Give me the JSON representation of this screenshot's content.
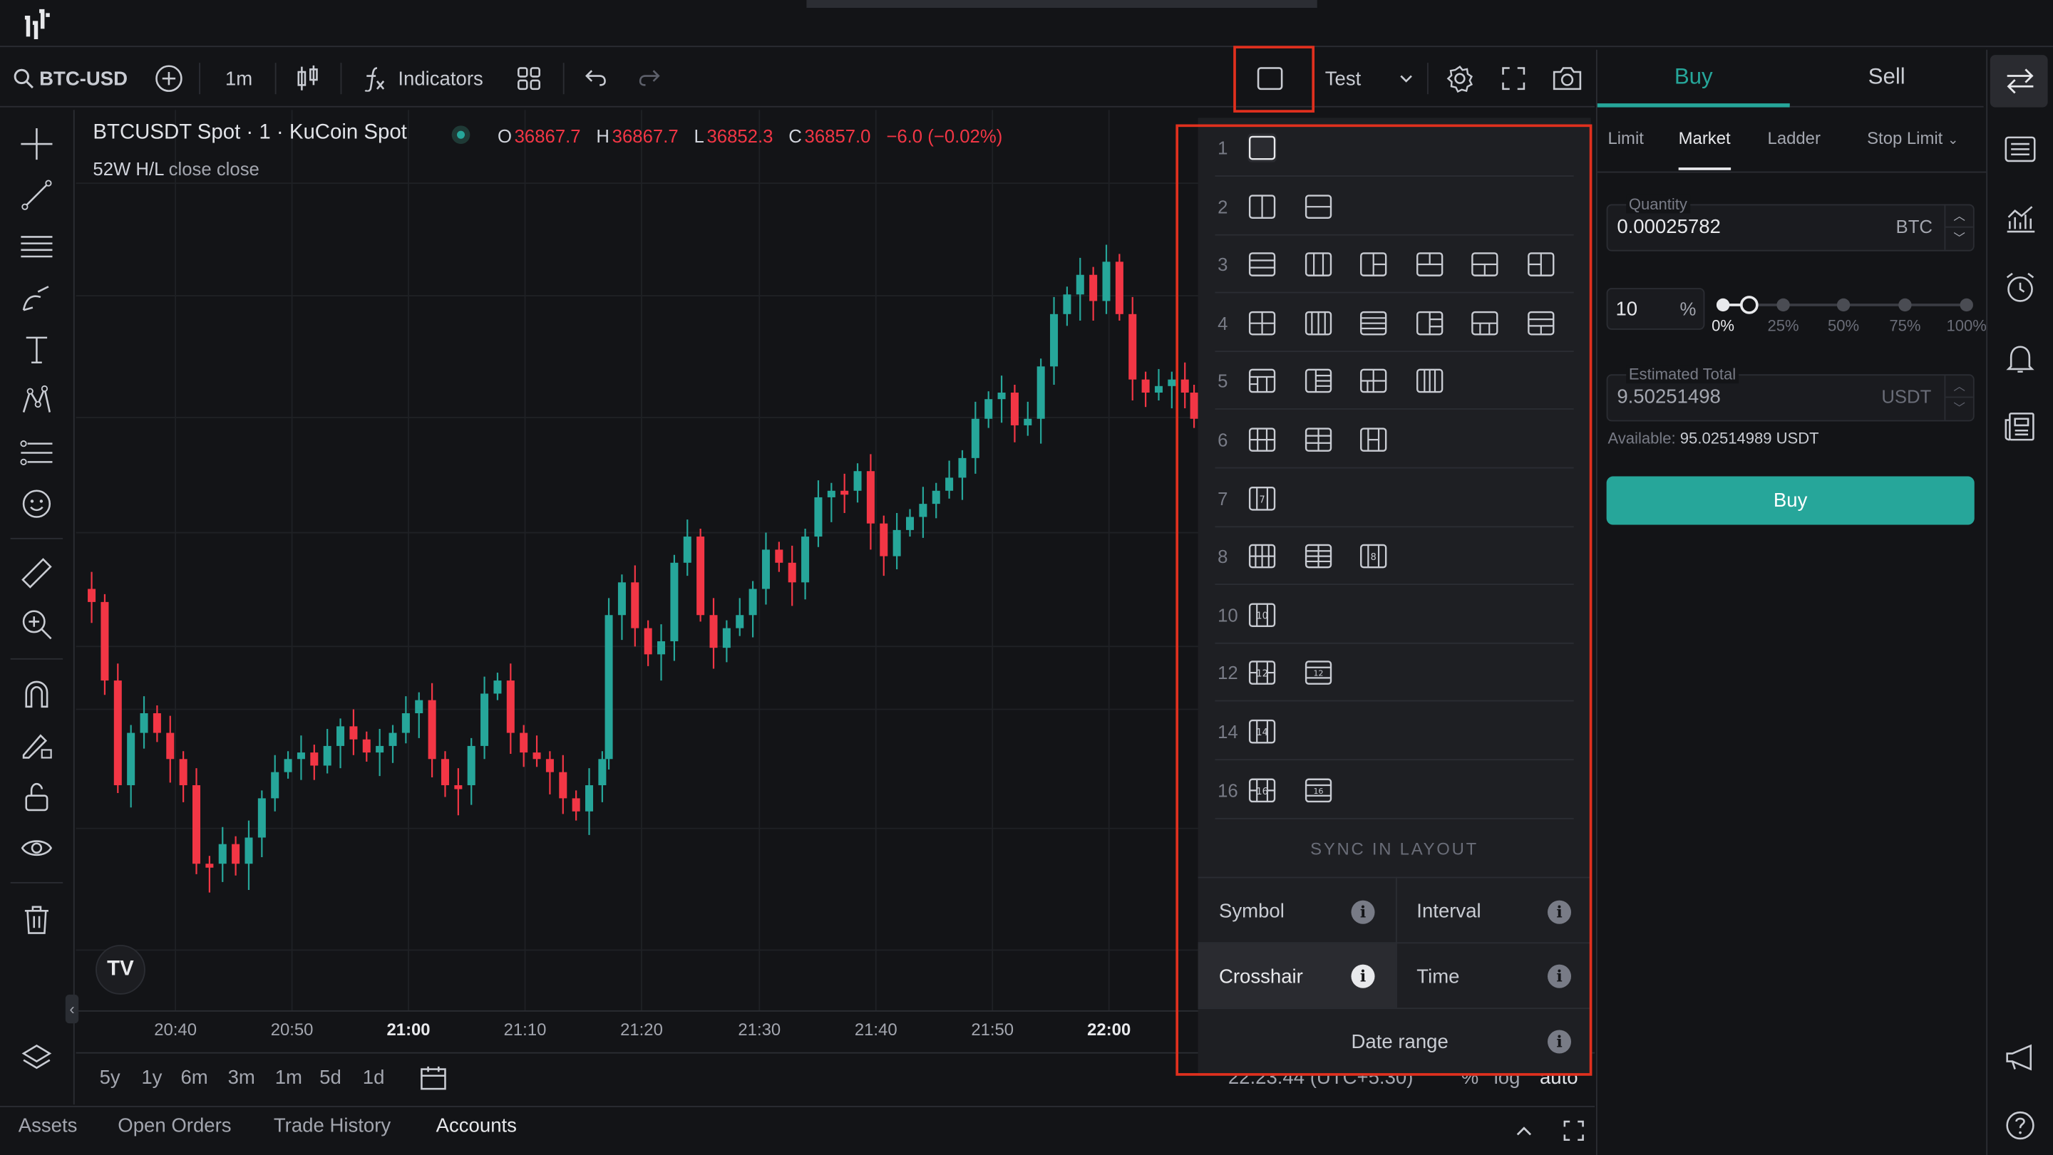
{
  "topbar": {
    "logo": "TV"
  },
  "toolbar": {
    "symbol": "BTC-USD",
    "interval": "1m",
    "indicators_label": "Indicators",
    "layout_name": "Test"
  },
  "chart": {
    "title": "BTCUSDT Spot · 1 · KuCoin Spot",
    "ohlc": {
      "o_label": "O",
      "o": "36867.7",
      "h_label": "H",
      "h": "36867.7",
      "l_label": "L",
      "l": "36852.3",
      "c_label": "C",
      "c": "36857.0",
      "change": "−6.0 (−0.02%)"
    },
    "study_label": "52W H/L",
    "study_values": "close close",
    "x_labels": [
      "20:40",
      "20:50",
      "21:00",
      "21:10",
      "21:20",
      "21:30",
      "21:40",
      "21:50",
      "22:00"
    ],
    "bold_x_labels": [
      "21:00",
      "22:00"
    ],
    "ranges": [
      "5y",
      "1y",
      "6m",
      "3m",
      "1m",
      "5d",
      "1d"
    ],
    "clock": "22:23:44 (UTC+5:30)",
    "scale_options": [
      "%",
      "log",
      "auto"
    ],
    "up_color": "#26a69a",
    "down_color": "#f23645"
  },
  "layout_menu": {
    "rows": [
      {
        "num": "1",
        "count": 1
      },
      {
        "num": "2",
        "count": 2
      },
      {
        "num": "3",
        "count": 6
      },
      {
        "num": "4",
        "count": 6
      },
      {
        "num": "5",
        "count": 4
      },
      {
        "num": "6",
        "count": 3
      },
      {
        "num": "7",
        "count": 1
      },
      {
        "num": "8",
        "count": 3
      },
      {
        "num": "10",
        "count": 1
      },
      {
        "num": "12",
        "count": 2
      },
      {
        "num": "14",
        "count": 1
      },
      {
        "num": "16",
        "count": 2
      }
    ],
    "sync_title": "SYNC IN LAYOUT",
    "sync": {
      "symbol": "Symbol",
      "interval": "Interval",
      "crosshair": "Crosshair",
      "time": "Time",
      "date_range": "Date range"
    }
  },
  "order_panel": {
    "tabs": {
      "buy": "Buy",
      "sell": "Sell"
    },
    "order_types": {
      "limit": "Limit",
      "market": "Market",
      "ladder": "Ladder",
      "stop_limit": "Stop Limit"
    },
    "quantity_label": "Quantity",
    "quantity_value": "0.00025782",
    "quantity_unit": "BTC",
    "percent_value": "10",
    "percent_sign": "%",
    "slider_marks": [
      "0%",
      "25%",
      "50%",
      "75%",
      "100%"
    ],
    "estimated_total_label": "Estimated Total",
    "estimated_total_value": "9.50251498",
    "estimated_total_unit": "USDT",
    "available_label": "Available:",
    "available_value": "95.02514989 USDT",
    "buy_button": "Buy",
    "accent": "#26a69a"
  },
  "bottom_tabs": [
    "Assets",
    "Open Orders",
    "Trade History",
    "Accounts"
  ],
  "highlight_color": "#e0301e"
}
